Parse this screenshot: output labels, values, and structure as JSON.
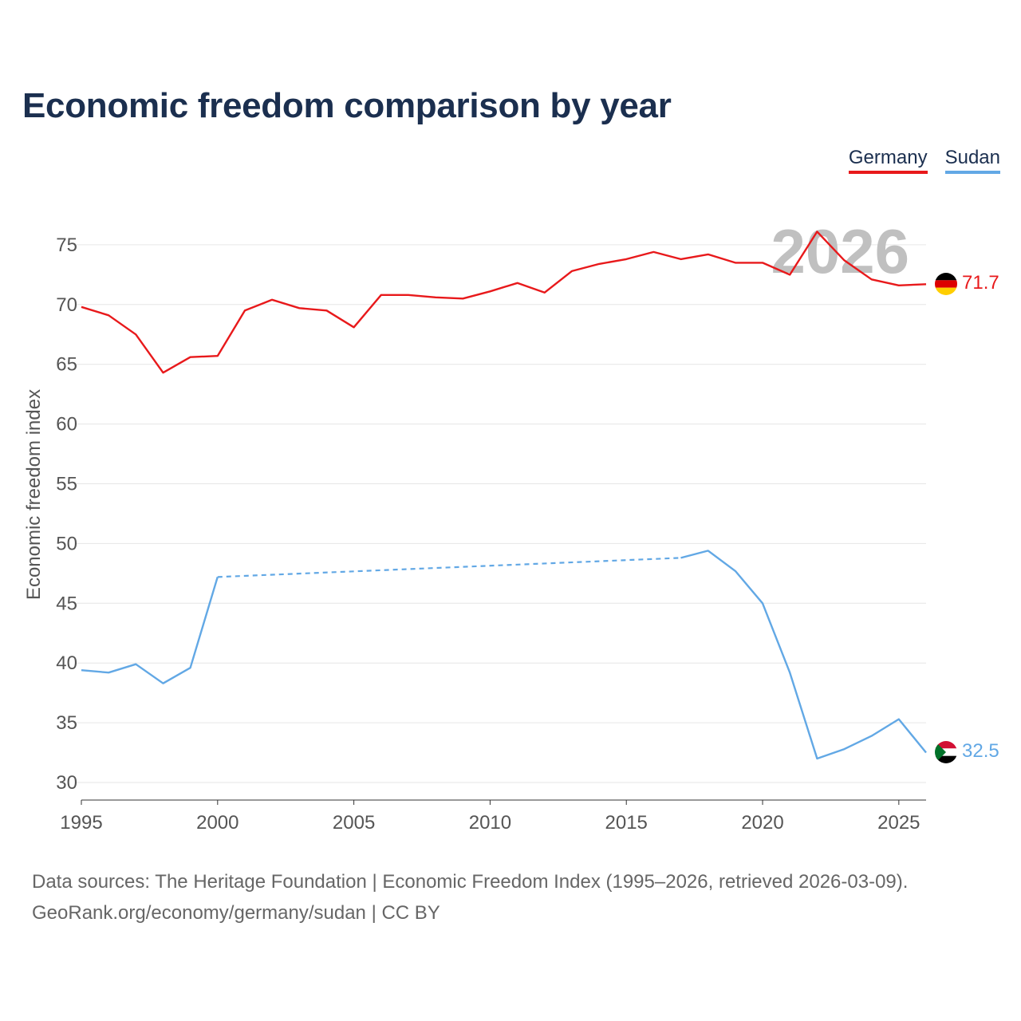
{
  "title": "Economic freedom comparison by year",
  "legend": [
    {
      "name": "Germany",
      "color": "#e8191b"
    },
    {
      "name": "Sudan",
      "color": "#62a8e5"
    }
  ],
  "year_watermark": "2026",
  "source_line1": "Data sources: The Heritage Foundation | Economic Freedom Index (1995–2026, retrieved 2026-03-09).",
  "source_line2": "GeoRank.org/economy/germany/sudan | CC BY",
  "chart_data": {
    "type": "line",
    "title": "Economic freedom comparison by year",
    "xlabel": "",
    "ylabel": "Economic freedom index",
    "xlim": [
      1995,
      2026
    ],
    "ylim": [
      30,
      77
    ],
    "x_ticks": [
      1995,
      2000,
      2005,
      2010,
      2015,
      2020,
      2025
    ],
    "y_ticks": [
      30,
      35,
      40,
      45,
      50,
      55,
      60,
      65,
      70,
      75
    ],
    "grid": true,
    "legend_position": "top-right",
    "series": [
      {
        "name": "Germany",
        "color": "#e8191b",
        "end_label": "71.7",
        "flag": "germany-flag",
        "points": [
          [
            1995,
            69.8
          ],
          [
            1996,
            69.1
          ],
          [
            1997,
            67.5
          ],
          [
            1998,
            64.3
          ],
          [
            1999,
            65.6
          ],
          [
            2000,
            65.7
          ],
          [
            2001,
            69.5
          ],
          [
            2002,
            70.4
          ],
          [
            2003,
            69.7
          ],
          [
            2004,
            69.5
          ],
          [
            2005,
            68.1
          ],
          [
            2006,
            70.8
          ],
          [
            2007,
            70.8
          ],
          [
            2008,
            70.6
          ],
          [
            2009,
            70.5
          ],
          [
            2010,
            71.1
          ],
          [
            2011,
            71.8
          ],
          [
            2012,
            71.0
          ],
          [
            2013,
            72.8
          ],
          [
            2014,
            73.4
          ],
          [
            2015,
            73.8
          ],
          [
            2016,
            74.4
          ],
          [
            2017,
            73.8
          ],
          [
            2018,
            74.2
          ],
          [
            2019,
            73.5
          ],
          [
            2020,
            73.5
          ],
          [
            2021,
            72.5
          ],
          [
            2022,
            76.1
          ],
          [
            2023,
            73.7
          ],
          [
            2024,
            72.1
          ],
          [
            2025,
            71.6
          ],
          [
            2026,
            71.7
          ]
        ]
      },
      {
        "name": "Sudan",
        "color": "#62a8e5",
        "end_label": "32.5",
        "flag": "sudan-flag",
        "points": [
          [
            1995,
            39.4
          ],
          [
            1996,
            39.2
          ],
          [
            1997,
            39.9
          ],
          [
            1998,
            38.3
          ],
          [
            1999,
            39.6
          ],
          [
            2000,
            47.2
          ],
          [
            2017,
            48.8
          ],
          [
            2018,
            49.4
          ],
          [
            2019,
            47.7
          ],
          [
            2020,
            45.0
          ],
          [
            2021,
            39.2
          ],
          [
            2022,
            32.0
          ],
          [
            2023,
            32.8
          ],
          [
            2024,
            33.9
          ],
          [
            2025,
            35.3
          ],
          [
            2026,
            32.5
          ]
        ],
        "dashed_gap": [
          2000,
          2017
        ]
      }
    ]
  }
}
